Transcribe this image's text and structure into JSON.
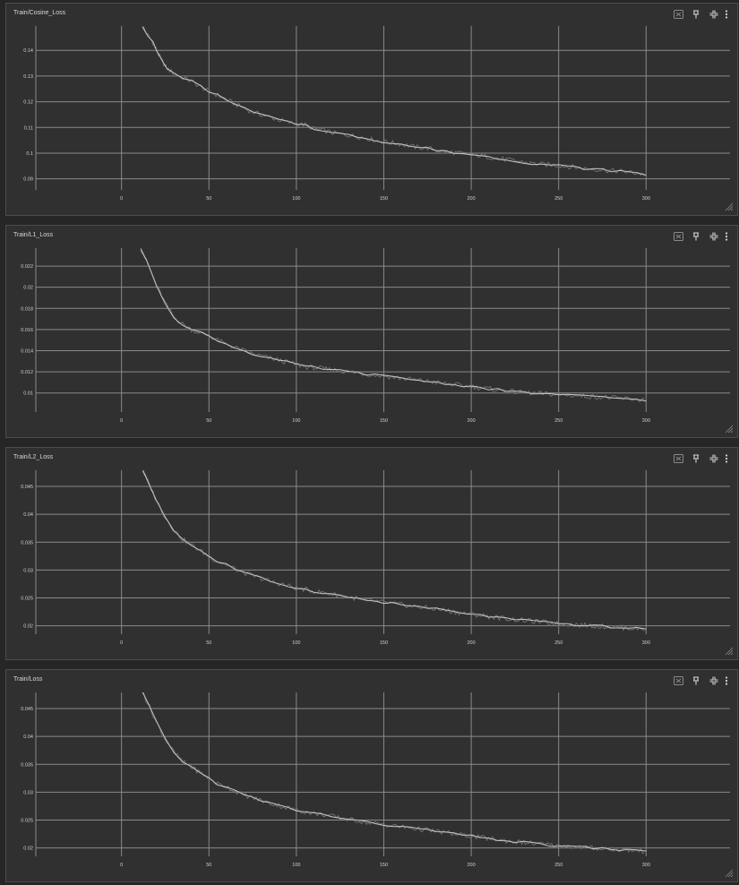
{
  "colors": {
    "background": "#262626",
    "card": "#303030",
    "grid": "#8a8a8a",
    "line": "#c8c8c8",
    "raw": "#6f6f6f",
    "text": "#d0d0d0"
  },
  "icons": [
    "fit-domain-icon",
    "pin-icon",
    "fullscreen-icon",
    "more-vert-icon",
    "resize-handle-icon"
  ],
  "cards": [
    {
      "title": "Train/Cosine_Loss"
    },
    {
      "title": "Train/L1_Loss"
    },
    {
      "title": "Train/L2_Loss"
    },
    {
      "title": "Train/Loss"
    }
  ],
  "chart_data": [
    {
      "type": "line",
      "title": "Train/Cosine_Loss",
      "grid": true,
      "xlim": [
        -49,
        348
      ],
      "ylim": [
        0.0857,
        0.1495
      ],
      "xticks": [
        0,
        50,
        100,
        150,
        200,
        250,
        300
      ],
      "xtick_labels": [
        "0",
        "50",
        "100",
        "150",
        "200",
        "250",
        "300"
      ],
      "yticks": [
        0.09,
        0.1,
        0.11,
        0.12,
        0.13,
        0.14
      ],
      "ytick_labels": [
        "0.09",
        "0.1",
        "0.11",
        "0.12",
        "0.13",
        "0.14"
      ],
      "series": [
        {
          "x": [
            12,
            15,
            18,
            20,
            23,
            26,
            30,
            35,
            40,
            45,
            50,
            55,
            60,
            65,
            70,
            75,
            80,
            85,
            90,
            95,
            100,
            105,
            110,
            115,
            120,
            125,
            130,
            135,
            140,
            145,
            150,
            155,
            160,
            165,
            170,
            175,
            180,
            185,
            190,
            195,
            200,
            205,
            210,
            215,
            220,
            225,
            230,
            235,
            240,
            245,
            250,
            255,
            260,
            265,
            270,
            275,
            280,
            285,
            290,
            295,
            300
          ],
          "y": [
            0.1495,
            0.146,
            0.143,
            0.14,
            0.136,
            0.133,
            0.131,
            0.1295,
            0.128,
            0.126,
            0.124,
            0.1225,
            0.121,
            0.119,
            0.1175,
            0.116,
            0.115,
            0.114,
            0.113,
            0.112,
            0.1115,
            0.111,
            0.1095,
            0.109,
            0.108,
            0.1075,
            0.107,
            0.1065,
            0.1058,
            0.105,
            0.1045,
            0.104,
            0.1035,
            0.1028,
            0.1022,
            0.102,
            0.1012,
            0.1006,
            0.1003,
            0.0998,
            0.0995,
            0.099,
            0.0985,
            0.098,
            0.0975,
            0.097,
            0.0965,
            0.096,
            0.0957,
            0.0955,
            0.0952,
            0.0948,
            0.0945,
            0.094,
            0.0937,
            0.0935,
            0.0932,
            0.093,
            0.0926,
            0.0922,
            0.0915
          ]
        }
      ]
    },
    {
      "type": "line",
      "title": "Train/L1_Loss",
      "grid": true,
      "xlim": [
        -49,
        348
      ],
      "ylim": [
        0.0082,
        0.0237
      ],
      "xticks": [
        0,
        50,
        100,
        150,
        200,
        250,
        300
      ],
      "xtick_labels": [
        "0",
        "50",
        "100",
        "150",
        "200",
        "250",
        "300"
      ],
      "yticks": [
        0.01,
        0.012,
        0.014,
        0.016,
        0.018,
        0.02,
        0.022
      ],
      "ytick_labels": [
        "0.01",
        "0.012",
        "0.014",
        "0.016",
        "0.018",
        "0.02",
        "0.022"
      ],
      "series": [
        {
          "x": [
            11,
            15,
            20,
            25,
            30,
            35,
            40,
            45,
            50,
            55,
            60,
            65,
            70,
            75,
            80,
            85,
            90,
            95,
            100,
            105,
            110,
            115,
            120,
            125,
            130,
            135,
            140,
            145,
            150,
            155,
            160,
            165,
            170,
            175,
            180,
            185,
            190,
            195,
            200,
            205,
            210,
            215,
            220,
            225,
            230,
            235,
            240,
            245,
            250,
            255,
            260,
            265,
            270,
            275,
            280,
            285,
            290,
            295,
            300
          ],
          "y": [
            0.0237,
            0.0222,
            0.0202,
            0.0185,
            0.0172,
            0.0165,
            0.016,
            0.0157,
            0.0154,
            0.015,
            0.0146,
            0.0143,
            0.014,
            0.0137,
            0.0135,
            0.0133,
            0.0131,
            0.0129,
            0.0127,
            0.0125,
            0.0124,
            0.0123,
            0.0122,
            0.0121,
            0.012,
            0.0119,
            0.0118,
            0.0117,
            0.0116,
            0.0115,
            0.0114,
            0.0113,
            0.0112,
            0.0111,
            0.011,
            0.0109,
            0.0108,
            0.0107,
            0.0106,
            0.0105,
            0.0104,
            0.0103,
            0.0102,
            0.0101,
            0.01005,
            0.01,
            0.00995,
            0.0099,
            0.00985,
            0.0098,
            0.00975,
            0.0097,
            0.00965,
            0.0096,
            0.00955,
            0.0095,
            0.00945,
            0.0094,
            0.00935
          ]
        }
      ]
    },
    {
      "type": "line",
      "title": "Train/L2_Loss",
      "grid": true,
      "xlim": [
        -49,
        348
      ],
      "ylim": [
        0.0185,
        0.0479
      ],
      "xticks": [
        0,
        50,
        100,
        150,
        200,
        250,
        300
      ],
      "xtick_labels": [
        "0",
        "50",
        "100",
        "150",
        "200",
        "250",
        "300"
      ],
      "yticks": [
        0.02,
        0.025,
        0.03,
        0.035,
        0.04,
        0.045
      ],
      "ytick_labels": [
        "0.02",
        "0.025",
        "0.03",
        "0.035",
        "0.04",
        "0.045"
      ],
      "series": [
        {
          "x": [
            12,
            15,
            20,
            25,
            30,
            35,
            40,
            45,
            50,
            55,
            60,
            65,
            70,
            75,
            80,
            85,
            90,
            95,
            100,
            105,
            110,
            115,
            120,
            125,
            130,
            135,
            140,
            145,
            150,
            155,
            160,
            165,
            170,
            175,
            180,
            185,
            190,
            195,
            200,
            205,
            210,
            215,
            220,
            225,
            230,
            235,
            240,
            245,
            250,
            255,
            260,
            265,
            270,
            275,
            280,
            285,
            290,
            295,
            300
          ],
          "y": [
            0.0479,
            0.046,
            0.0425,
            0.0395,
            0.0372,
            0.0355,
            0.0345,
            0.0335,
            0.0325,
            0.0315,
            0.031,
            0.0302,
            0.0295,
            0.029,
            0.0285,
            0.028,
            0.0276,
            0.0272,
            0.0268,
            0.0265,
            0.0262,
            0.026,
            0.0257,
            0.0254,
            0.0251,
            0.0249,
            0.0246,
            0.0244,
            0.0242,
            0.024,
            0.0238,
            0.0236,
            0.0234,
            0.0232,
            0.023,
            0.0228,
            0.0225,
            0.0223,
            0.0221,
            0.0219,
            0.0217,
            0.0215,
            0.0213,
            0.0211,
            0.021,
            0.0208,
            0.0207,
            0.0205,
            0.0204,
            0.0203,
            0.0202,
            0.0201,
            0.02,
            0.0199,
            0.0198,
            0.0197,
            0.0196,
            0.0195,
            0.0194
          ]
        }
      ]
    },
    {
      "type": "line",
      "title": "Train/Loss",
      "grid": true,
      "xlim": [
        -49,
        348
      ],
      "ylim": [
        0.0185,
        0.0479
      ],
      "xticks": [
        0,
        50,
        100,
        150,
        200,
        250,
        300
      ],
      "xtick_labels": [
        "0",
        "50",
        "100",
        "150",
        "200",
        "250",
        "300"
      ],
      "yticks": [
        0.02,
        0.025,
        0.03,
        0.035,
        0.04,
        0.045
      ],
      "ytick_labels": [
        "0.02",
        "0.025",
        "0.03",
        "0.035",
        "0.04",
        "0.045"
      ],
      "series": [
        {
          "x": [
            12,
            15,
            20,
            25,
            30,
            35,
            40,
            45,
            50,
            55,
            60,
            65,
            70,
            75,
            80,
            85,
            90,
            95,
            100,
            105,
            110,
            115,
            120,
            125,
            130,
            135,
            140,
            145,
            150,
            155,
            160,
            165,
            170,
            175,
            180,
            185,
            190,
            195,
            200,
            205,
            210,
            215,
            220,
            225,
            230,
            235,
            240,
            245,
            250,
            255,
            260,
            265,
            270,
            275,
            280,
            285,
            290,
            295,
            300
          ],
          "y": [
            0.0479,
            0.046,
            0.0425,
            0.0395,
            0.0372,
            0.0355,
            0.0345,
            0.0335,
            0.0325,
            0.0315,
            0.031,
            0.0302,
            0.0295,
            0.029,
            0.0285,
            0.028,
            0.0276,
            0.0272,
            0.0268,
            0.0265,
            0.0262,
            0.026,
            0.0257,
            0.0254,
            0.0251,
            0.0249,
            0.0246,
            0.0244,
            0.0242,
            0.024,
            0.0238,
            0.0236,
            0.0234,
            0.0232,
            0.023,
            0.0228,
            0.0225,
            0.0223,
            0.0221,
            0.0219,
            0.0217,
            0.0215,
            0.0213,
            0.0211,
            0.021,
            0.0208,
            0.0207,
            0.0205,
            0.0204,
            0.0203,
            0.0202,
            0.0201,
            0.02,
            0.0199,
            0.0198,
            0.0197,
            0.0196,
            0.0195,
            0.0194
          ]
        }
      ]
    }
  ]
}
